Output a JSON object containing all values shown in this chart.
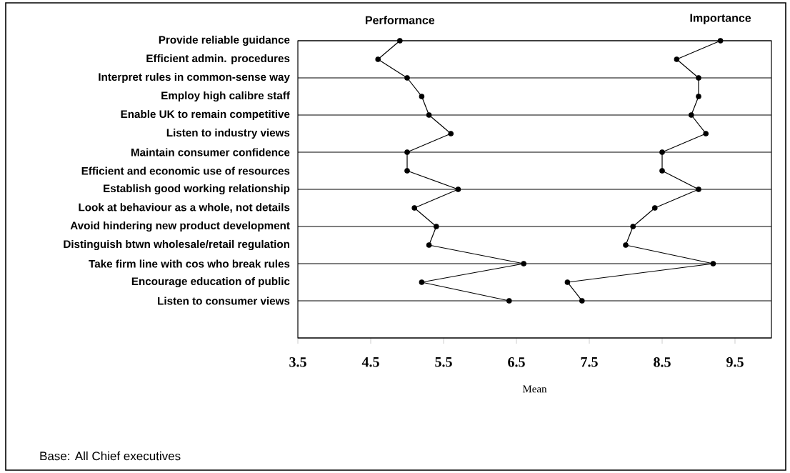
{
  "chart_data": {
    "type": "line",
    "orientation": "horizontal",
    "categories": [
      "Provide reliable guidance",
      "Efficient admin. procedures",
      "Interpret  rules in common-sense way",
      "Employ high calibre staff",
      "Enable UK to remain competitive",
      "Listen to industry views",
      "Maintain consumer confidence",
      "Efficient and economic use of resources",
      "Establish good working relationship",
      "Look at behaviour as a whole, not details",
      "Avoid hindering new product development",
      "Distinguish btwn wholesale/retail regulation",
      "Take firm line with cos who break rules",
      "Encourage education of public",
      "Listen to consumer views"
    ],
    "series": [
      {
        "name": "Performance",
        "color": "#000000",
        "values": [
          4.9,
          4.6,
          5.0,
          5.2,
          5.3,
          5.6,
          5.0,
          5.0,
          5.7,
          5.1,
          5.4,
          5.3,
          6.6,
          5.2,
          6.4
        ]
      },
      {
        "name": "Importance",
        "color": "#000000",
        "values": [
          9.3,
          8.7,
          9.0,
          9.0,
          8.9,
          9.1,
          8.5,
          8.5,
          9.0,
          8.4,
          8.1,
          8.0,
          9.2,
          7.2,
          7.4
        ]
      }
    ],
    "xlim": [
      3.5,
      10
    ],
    "xticks": [
      3.5,
      4.5,
      5.5,
      6.5,
      7.5,
      8.5,
      9.5
    ],
    "xlabel": "Mean",
    "grid": "y",
    "marker": "circle",
    "line_style": "solid",
    "annotations": [
      "Base: All Chief executives"
    ]
  }
}
